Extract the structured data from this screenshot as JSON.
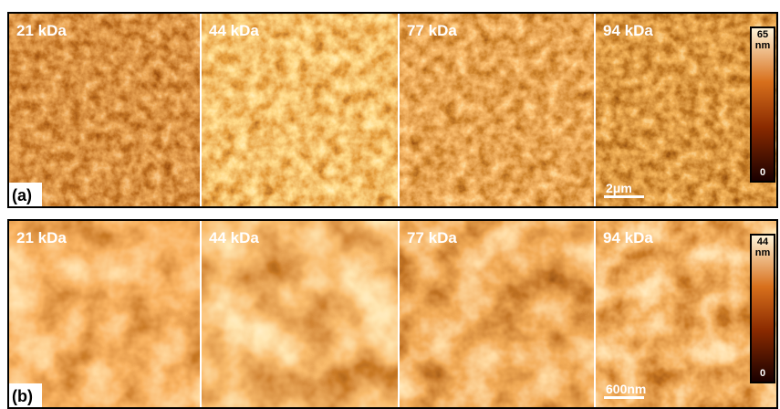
{
  "rows": [
    {
      "label": "(a)",
      "panels": [
        "21 kDa",
        "44 kDa",
        "77 kDa",
        "94 kDa"
      ],
      "colorbar": {
        "max": 65,
        "unit": "nm",
        "min": 0
      },
      "scalebar": "2μm"
    },
    {
      "label": "(b)",
      "panels": [
        "21 kDa",
        "44 kDa",
        "77 kDa",
        "94 kDa"
      ],
      "colorbar": {
        "max": 44,
        "unit": "nm",
        "min": 0
      },
      "scalebar": "600nm"
    }
  ]
}
